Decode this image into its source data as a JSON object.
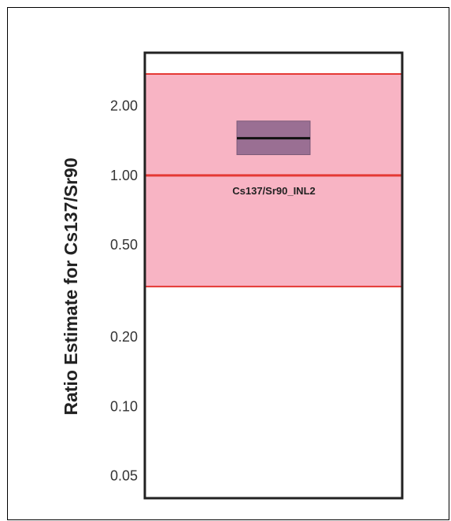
{
  "chart_data": {
    "type": "box",
    "ylabel": "Ratio Estimate for Cs137/Sr90",
    "y_scale": "log",
    "ylim": [
      0.04,
      3.4
    ],
    "y_ticks": [
      2.0,
      1.0,
      0.5,
      0.2,
      0.1,
      0.05
    ],
    "y_tick_labels": [
      "2.00",
      "1.00",
      "0.50",
      "0.20",
      "0.10",
      "0.05"
    ],
    "reference_band": {
      "lower": 0.33,
      "upper": 2.75,
      "color": "#f8b4c4",
      "edge_color": "#e53935"
    },
    "reference_line": {
      "value": 1.0,
      "color": "#e53935"
    },
    "box": {
      "label": "Cs137/Sr90_INL2",
      "median": 1.45,
      "q1": 1.23,
      "q3": 1.72,
      "fill": "#9a6f93",
      "median_color": "#111111"
    }
  }
}
